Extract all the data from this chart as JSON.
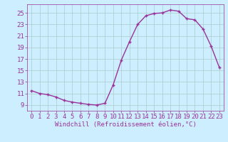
{
  "x": [
    0,
    1,
    2,
    3,
    4,
    5,
    6,
    7,
    8,
    9,
    10,
    11,
    12,
    13,
    14,
    15,
    16,
    17,
    18,
    19,
    20,
    21,
    22,
    23
  ],
  "y": [
    11.5,
    11.0,
    10.8,
    10.4,
    9.8,
    9.5,
    9.3,
    9.1,
    9.0,
    9.3,
    12.5,
    16.8,
    20.0,
    23.0,
    24.5,
    24.9,
    25.0,
    25.5,
    25.3,
    24.0,
    23.8,
    22.2,
    19.2,
    15.5
  ],
  "line_color": "#993399",
  "marker": "+",
  "bg_color": "#cceeff",
  "grid_color": "#aacccc",
  "xlabel": "Windchill (Refroidissement éolien,°C)",
  "ytick_labels": [
    "9",
    "11",
    "13",
    "15",
    "17",
    "19",
    "21",
    "23",
    "25"
  ],
  "ytick_vals": [
    9,
    11,
    13,
    15,
    17,
    19,
    21,
    23,
    25
  ],
  "ylim": [
    8.0,
    26.5
  ],
  "xlim": [
    -0.5,
    23.5
  ],
  "xticks": [
    0,
    1,
    2,
    3,
    4,
    5,
    6,
    7,
    8,
    9,
    10,
    11,
    12,
    13,
    14,
    15,
    16,
    17,
    18,
    19,
    20,
    21,
    22,
    23
  ],
  "label_fontsize": 6.5,
  "tick_fontsize": 6.5,
  "linewidth": 1.0,
  "markersize": 3.5,
  "markeredgewidth": 1.0
}
